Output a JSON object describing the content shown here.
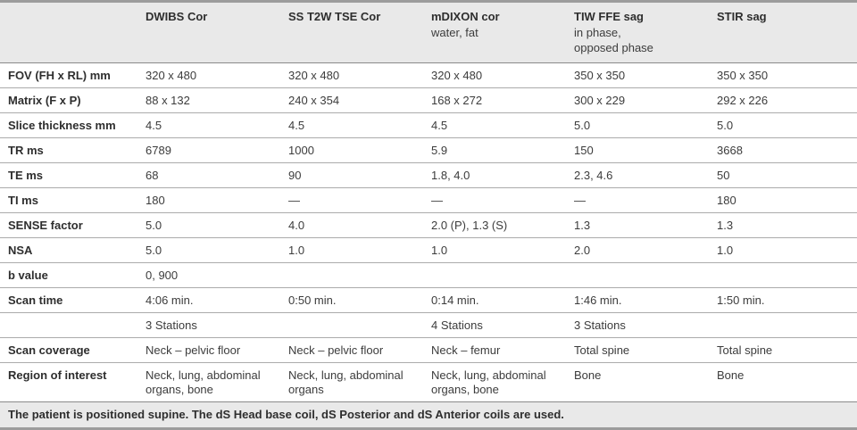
{
  "table": {
    "columns": [
      {
        "label": "DWIBS Cor",
        "sub": ""
      },
      {
        "label": "SS T2W TSE Cor",
        "sub": ""
      },
      {
        "label": "mDIXON cor",
        "sub": "water, fat"
      },
      {
        "label": "TIW FFE sag",
        "sub": "in phase,\nopposed phase"
      },
      {
        "label": "STIR sag",
        "sub": ""
      }
    ],
    "rows": [
      {
        "label": "FOV (FH x RL) mm",
        "values": [
          "320 x 480",
          "320 x 480",
          "320 x 480",
          "350 x 350",
          "350 x 350"
        ]
      },
      {
        "label": "Matrix (F x P)",
        "values": [
          "88 x 132",
          "240 x 354",
          "168 x 272",
          "300 x 229",
          "292 x 226"
        ]
      },
      {
        "label": "Slice thickness mm",
        "values": [
          "4.5",
          "4.5",
          "4.5",
          "5.0",
          "5.0"
        ]
      },
      {
        "label": "TR ms",
        "values": [
          "6789",
          "1000",
          "5.9",
          "150",
          "3668"
        ]
      },
      {
        "label": "TE ms",
        "values": [
          "68",
          "90",
          "1.8, 4.0",
          "2.3, 4.6",
          "50"
        ]
      },
      {
        "label": "TI ms",
        "values": [
          "180",
          "—",
          "—",
          "—",
          "180"
        ]
      },
      {
        "label": "SENSE factor",
        "values": [
          "5.0",
          "4.0",
          "2.0 (P), 1.3 (S)",
          "1.3",
          "1.3"
        ]
      },
      {
        "label": "NSA",
        "values": [
          "5.0",
          "1.0",
          "1.0",
          "2.0",
          "1.0"
        ]
      },
      {
        "label": "b value",
        "values": [
          "0, 900",
          "",
          "",
          "",
          ""
        ]
      },
      {
        "label": "Scan time",
        "values": [
          "4:06 min.",
          "0:50 min.",
          "0:14 min.",
          "1:46 min.",
          "1:50 min."
        ]
      },
      {
        "label": "",
        "values": [
          "3 Stations",
          "",
          "4 Stations",
          "3 Stations",
          ""
        ]
      },
      {
        "label": "Scan coverage",
        "values": [
          "Neck – pelvic floor",
          "Neck – pelvic floor",
          "Neck – femur",
          "Total spine",
          "Total spine"
        ]
      },
      {
        "label": "Region of interest",
        "values": [
          "Neck, lung, abdominal organs, bone",
          "Neck, lung, abdominal organs",
          "Neck, lung, abdominal organs, bone",
          "Bone",
          "Bone"
        ]
      }
    ],
    "footer_note": "The patient is positioned supine. The dS Head base coil, dS Posterior and dS Anterior coils are used."
  },
  "colors": {
    "header_bg": "#e9e9e9",
    "footer_bg": "#e9e9e9",
    "thick_border": "#9c9c9c",
    "row_separator": "#ababab",
    "header_separator": "#8a8a8a",
    "label_text": "#2e2e2e",
    "value_text": "#3c3c3c"
  }
}
